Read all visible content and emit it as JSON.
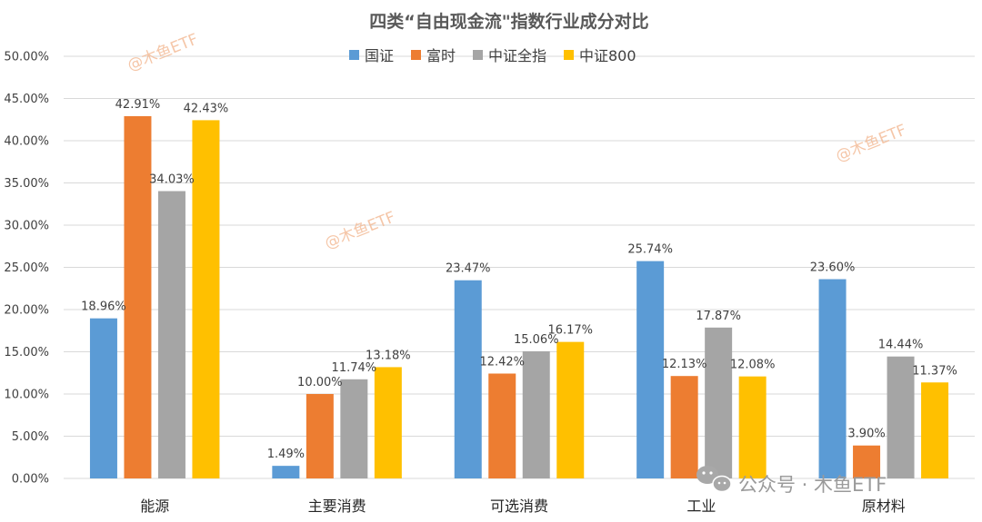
{
  "chart_data": {
    "type": "bar",
    "title": "四类“自由现金流\"指数行业成分对比",
    "categories": [
      "能源",
      "主要消费",
      "可选消费",
      "工业",
      "原材料"
    ],
    "series": [
      {
        "name": "国证",
        "color": "#5b9bd5",
        "values": [
          18.96,
          1.49,
          23.47,
          25.74,
          23.6
        ],
        "labels": [
          "18.96%",
          "1.49%",
          "23.47%",
          "25.74%",
          "23.60%"
        ]
      },
      {
        "name": "富时",
        "color": "#ed7d31",
        "values": [
          42.91,
          10.0,
          12.42,
          12.13,
          3.9
        ],
        "labels": [
          "42.91%",
          "10.00%",
          "12.42%",
          "12.13%",
          "3.90%"
        ]
      },
      {
        "name": "中证全指",
        "color": "#a5a5a5",
        "values": [
          34.03,
          11.74,
          15.06,
          17.87,
          14.44
        ],
        "labels": [
          "34.03%",
          "11.74%",
          "15.06%",
          "17.87%",
          "14.44%"
        ]
      },
      {
        "name": "中证800",
        "color": "#ffc000",
        "values": [
          42.43,
          13.18,
          16.17,
          12.08,
          11.37
        ],
        "labels": [
          "42.43%",
          "13.18%",
          "16.17%",
          "12.08%",
          "11.37%"
        ]
      }
    ],
    "ylim": [
      0,
      50
    ],
    "yticks": [
      "0.00%",
      "5.00%",
      "10.00%",
      "15.00%",
      "20.00%",
      "25.00%",
      "30.00%",
      "35.00%",
      "40.00%",
      "45.00%",
      "50.00%"
    ],
    "grid": true,
    "legend": "top"
  },
  "watermark": {
    "text": "@木鱼ETF",
    "brand_prefix": "公众号 · ",
    "brand_name": "木鱼ETF"
  }
}
